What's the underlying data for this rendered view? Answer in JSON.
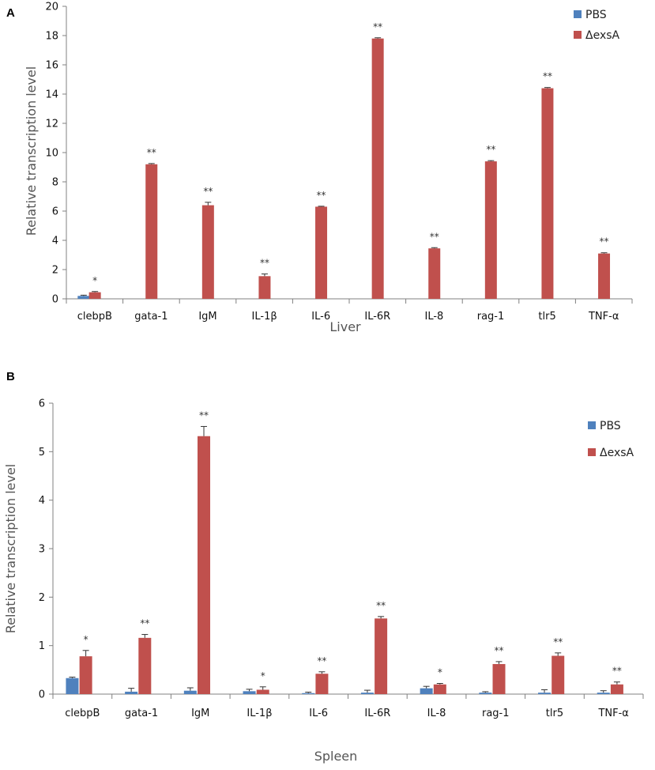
{
  "colors": {
    "pbs": "#4f81bd",
    "dexsa": "#c0504d",
    "axis": "#808080",
    "error": "#333333"
  },
  "chart_data": [
    {
      "panel": "A",
      "type": "bar",
      "title": "",
      "xlabel": "Liver",
      "ylabel": "Relative transcription level",
      "ylim": [
        0,
        20
      ],
      "yticks": [
        0,
        2,
        4,
        6,
        8,
        10,
        12,
        14,
        16,
        18,
        20
      ],
      "grid": false,
      "legend_position": "top-right",
      "categories": [
        "clebpB",
        "gata-1",
        "IgM",
        "IL-1β",
        "IL-6",
        "IL-6R",
        "IL-8",
        "rag-1",
        "tlr5",
        "TNF-α"
      ],
      "series": [
        {
          "name": "PBS",
          "color_key": "pbs",
          "values": [
            0.2,
            0,
            0,
            0,
            0,
            0,
            0,
            0,
            0,
            0
          ],
          "errors": [
            0.05,
            0,
            0,
            0,
            0,
            0,
            0,
            0,
            0,
            0
          ]
        },
        {
          "name": "ΔexsA",
          "color_key": "dexsa",
          "values": [
            0.45,
            9.2,
            6.4,
            1.55,
            6.3,
            17.8,
            3.45,
            9.4,
            14.4,
            3.1
          ],
          "errors": [
            0.05,
            0.05,
            0.2,
            0.15,
            0.03,
            0.05,
            0.05,
            0.05,
            0.05,
            0.05
          ]
        }
      ],
      "significance": [
        "*",
        "**",
        "**",
        "**",
        "**",
        "**",
        "**",
        "**",
        "**",
        "**"
      ]
    },
    {
      "panel": "B",
      "type": "bar",
      "title": "",
      "xlabel": "Spleen",
      "ylabel": "Relative transcription level",
      "ylim": [
        0,
        6
      ],
      "yticks": [
        0,
        1,
        2,
        3,
        4,
        5,
        6
      ],
      "grid": false,
      "legend_position": "top-right",
      "categories": [
        "clebpB",
        "gata-1",
        "IgM",
        "IL-1β",
        "IL-6",
        "IL-6R",
        "IL-8",
        "rag-1",
        "tlr5",
        "TNF-α"
      ],
      "series": [
        {
          "name": "PBS",
          "color_key": "pbs",
          "values": [
            0.33,
            0.05,
            0.07,
            0.06,
            0.02,
            0.03,
            0.12,
            0.03,
            0.03,
            0.03
          ],
          "errors": [
            0.02,
            0.07,
            0.06,
            0.04,
            0.02,
            0.05,
            0.04,
            0.02,
            0.06,
            0.04
          ]
        },
        {
          "name": "ΔexsA",
          "color_key": "dexsa",
          "values": [
            0.78,
            1.16,
            5.32,
            0.09,
            0.42,
            1.56,
            0.2,
            0.62,
            0.79,
            0.2
          ],
          "errors": [
            0.12,
            0.07,
            0.2,
            0.06,
            0.04,
            0.04,
            0.02,
            0.05,
            0.06,
            0.05
          ]
        }
      ],
      "significance": [
        "*",
        "**",
        "**",
        "*",
        "**",
        "**",
        "*",
        "**",
        "**",
        "**"
      ]
    }
  ]
}
